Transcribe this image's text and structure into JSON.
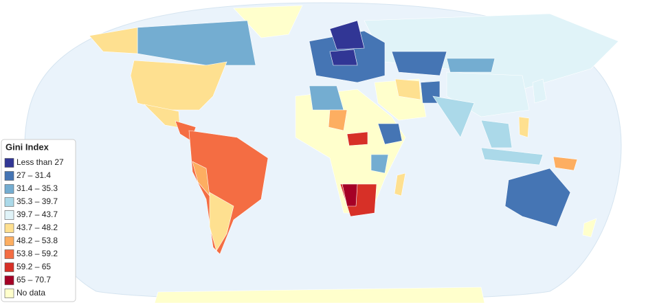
{
  "legend": {
    "title": "Gini Index",
    "items": [
      {
        "label": "Less than 27",
        "color": "#313695"
      },
      {
        "label": "27 – 31.4",
        "color": "#4575b4"
      },
      {
        "label": "31.4 – 35.3",
        "color": "#74add1"
      },
      {
        "label": "35.3 – 39.7",
        "color": "#abd9e9"
      },
      {
        "label": "39.7 – 43.7",
        "color": "#e0f3f8"
      },
      {
        "label": "43.7 – 48.2",
        "color": "#fee090"
      },
      {
        "label": "48.2 – 53.8",
        "color": "#fdae61"
      },
      {
        "label": "53.8 – 59.2",
        "color": "#f46d43"
      },
      {
        "label": "59.2 – 65",
        "color": "#d73027"
      },
      {
        "label": "65 – 70.7",
        "color": "#a50026"
      },
      {
        "label": "No data",
        "color": "#ffffcc"
      }
    ]
  }
}
